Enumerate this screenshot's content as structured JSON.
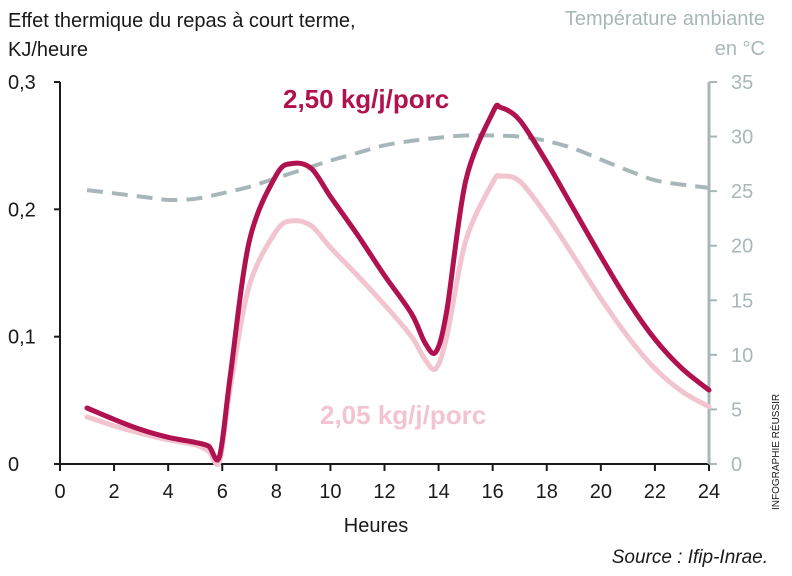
{
  "chart_data": {
    "type": "line",
    "title_left_line1": "Effet thermique du repas à court terme,",
    "title_left_line2": "KJ/heure",
    "title_right_line1": "Température ambiante",
    "title_right_line2": "en °C",
    "xlabel": "Heures",
    "source": "Source : Ifip-Inrae.",
    "credit": "INFOGRAPHIE RÉUSSIR",
    "xlim": [
      0,
      24
    ],
    "ylim_left": [
      0,
      0.3
    ],
    "ylim_right": [
      0,
      35
    ],
    "x_ticks": [
      "0",
      "2",
      "4",
      "6",
      "8",
      "10",
      "12",
      "14",
      "16",
      "18",
      "20",
      "22",
      "24"
    ],
    "y_left_ticks": [
      "0",
      "0,1",
      "0,2",
      "0,3"
    ],
    "y_right_ticks": [
      "0",
      "5",
      "10",
      "15",
      "20",
      "25",
      "30",
      "35"
    ],
    "grid": false,
    "series": [
      {
        "name": "2,50 kg/j/porc",
        "axis": "left",
        "color": "#b0114f",
        "x": [
          1,
          2,
          3,
          4,
          5,
          5.5,
          5.9,
          6.3,
          7,
          8,
          8.6,
          9.3,
          10,
          11,
          12,
          13,
          13.5,
          13.9,
          14.3,
          15,
          16,
          16.3,
          17,
          18,
          19,
          20,
          21,
          22,
          23,
          24
        ],
        "y": [
          0.044,
          0.035,
          0.027,
          0.021,
          0.017,
          0.014,
          0.006,
          0.07,
          0.175,
          0.227,
          0.236,
          0.232,
          0.21,
          0.18,
          0.148,
          0.118,
          0.095,
          0.088,
          0.12,
          0.222,
          0.276,
          0.28,
          0.27,
          0.237,
          0.2,
          0.163,
          0.128,
          0.098,
          0.075,
          0.058
        ]
      },
      {
        "name": "2,05 kg/j/porc",
        "axis": "left",
        "color": "#f2c4cf",
        "x": [
          1,
          2,
          3,
          4,
          5,
          5.5,
          5.9,
          6.3,
          7,
          8,
          8.6,
          9.3,
          10,
          11,
          12,
          13,
          13.5,
          13.9,
          14.3,
          15,
          16,
          16.3,
          17,
          18,
          19,
          20,
          21,
          22,
          23,
          24
        ],
        "y": [
          0.037,
          0.03,
          0.024,
          0.019,
          0.015,
          0.01,
          0.002,
          0.06,
          0.14,
          0.183,
          0.191,
          0.187,
          0.17,
          0.148,
          0.125,
          0.1,
          0.082,
          0.075,
          0.1,
          0.175,
          0.221,
          0.226,
          0.222,
          0.195,
          0.163,
          0.13,
          0.1,
          0.075,
          0.057,
          0.045
        ]
      },
      {
        "name": "Température ambiante",
        "axis": "right",
        "color": "#a7b7b9",
        "style": "dashed",
        "x": [
          1,
          2,
          3,
          4,
          5,
          6,
          7,
          8,
          9,
          10,
          11,
          12,
          13,
          14,
          15,
          16,
          17,
          18,
          19,
          20,
          21,
          22,
          23,
          24
        ],
        "y": [
          25.1,
          24.8,
          24.5,
          24.2,
          24.3,
          24.8,
          25.4,
          26.2,
          27.0,
          27.8,
          28.5,
          29.2,
          29.6,
          29.9,
          30.1,
          30.1,
          30.0,
          29.6,
          28.9,
          27.9,
          26.9,
          26.0,
          25.6,
          25.3
        ]
      }
    ],
    "annotations": [
      {
        "text": "2,50 kg/j/porc",
        "color": "#b0114f"
      },
      {
        "text": "2,05 kg/j/porc",
        "color": "#f2c4cf"
      }
    ]
  }
}
